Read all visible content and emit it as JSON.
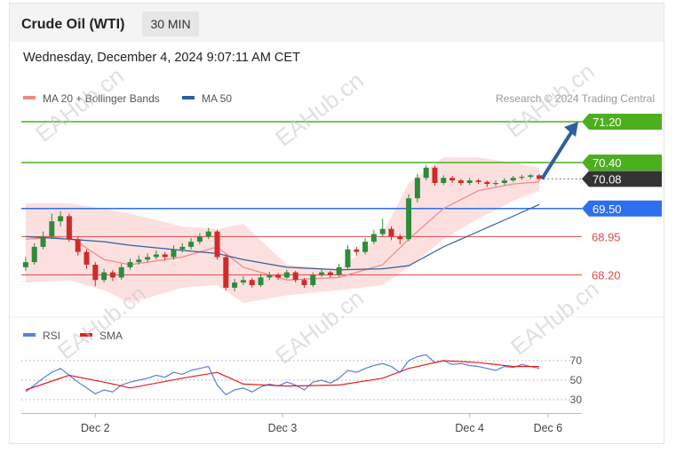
{
  "header": {
    "title": "Crude Oil (WTI)",
    "interval": "30 MIN",
    "timestamp": "Wednesday, December 4, 2024 9:07:11 AM CET",
    "credit": "Research © 2024 Trading Central"
  },
  "chart_data": {
    "type": "candlestick",
    "watermark": "EAHub.cn",
    "xlim": [
      -0.5,
      63
    ],
    "xticks": [
      {
        "value": 8,
        "label": "Dec 2"
      },
      {
        "value": 29.5,
        "label": "Dec 3"
      },
      {
        "value": 51,
        "label": "Dec 4"
      },
      {
        "value": 60,
        "label": "Dec 6"
      }
    ],
    "ylim": [
      67.4,
      71.4
    ],
    "up_color": "#2e8b3a",
    "down_color": "#d02a2a",
    "candles": [
      [
        68.35,
        68.55,
        68.28,
        68.45
      ],
      [
        68.45,
        68.82,
        68.4,
        68.75
      ],
      [
        68.75,
        69.05,
        68.7,
        68.95
      ],
      [
        68.95,
        69.4,
        68.9,
        69.25
      ],
      [
        69.25,
        69.45,
        69.15,
        69.35
      ],
      [
        69.35,
        69.4,
        68.85,
        68.9
      ],
      [
        68.9,
        68.95,
        68.58,
        68.65
      ],
      [
        68.65,
        68.7,
        68.32,
        68.4
      ],
      [
        68.4,
        68.45,
        67.98,
        68.1
      ],
      [
        68.1,
        68.32,
        68.05,
        68.25
      ],
      [
        68.25,
        68.3,
        68.08,
        68.15
      ],
      [
        68.15,
        68.42,
        68.1,
        68.35
      ],
      [
        68.35,
        68.52,
        68.3,
        68.45
      ],
      [
        68.45,
        68.58,
        68.4,
        68.5
      ],
      [
        68.5,
        68.62,
        68.45,
        68.55
      ],
      [
        68.55,
        68.68,
        68.5,
        68.6
      ],
      [
        68.6,
        68.65,
        68.48,
        68.55
      ],
      [
        68.55,
        68.78,
        68.5,
        68.7
      ],
      [
        68.7,
        68.82,
        68.64,
        68.75
      ],
      [
        68.75,
        68.92,
        68.7,
        68.85
      ],
      [
        68.85,
        69.02,
        68.8,
        68.95
      ],
      [
        68.95,
        69.12,
        68.9,
        69.05
      ],
      [
        69.05,
        69.08,
        68.5,
        68.55
      ],
      [
        68.55,
        68.6,
        67.9,
        67.95
      ],
      [
        67.95,
        68.12,
        67.88,
        68.05
      ],
      [
        68.05,
        68.18,
        68.0,
        68.1
      ],
      [
        68.1,
        68.14,
        67.95,
        68.0
      ],
      [
        68.0,
        68.22,
        67.96,
        68.15
      ],
      [
        68.15,
        68.26,
        68.1,
        68.2
      ],
      [
        68.2,
        68.24,
        68.1,
        68.15
      ],
      [
        68.15,
        68.3,
        68.12,
        68.25
      ],
      [
        68.25,
        68.28,
        68.05,
        68.1
      ],
      [
        68.1,
        68.14,
        67.95,
        68.0
      ],
      [
        68.0,
        68.25,
        67.96,
        68.2
      ],
      [
        68.2,
        68.3,
        68.16,
        68.25
      ],
      [
        68.25,
        68.28,
        68.15,
        68.2
      ],
      [
        68.2,
        68.42,
        68.16,
        68.35
      ],
      [
        68.35,
        68.78,
        68.3,
        68.7
      ],
      [
        68.7,
        68.75,
        68.58,
        68.65
      ],
      [
        68.65,
        68.92,
        68.6,
        68.85
      ],
      [
        68.85,
        69.08,
        68.8,
        69.0
      ],
      [
        69.0,
        69.3,
        68.95,
        69.1
      ],
      [
        69.1,
        69.15,
        68.88,
        68.95
      ],
      [
        68.95,
        69.0,
        68.8,
        68.9
      ],
      [
        68.9,
        69.78,
        68.86,
        69.7
      ],
      [
        69.7,
        70.18,
        69.62,
        70.1
      ],
      [
        70.1,
        70.35,
        70.05,
        70.3
      ],
      [
        70.3,
        70.34,
        69.95,
        70.0
      ],
      [
        70.0,
        70.15,
        69.96,
        70.1
      ],
      [
        70.1,
        70.14,
        70.0,
        70.05
      ],
      [
        70.05,
        70.08,
        69.95,
        70.0
      ],
      [
        70.0,
        70.1,
        69.96,
        70.05
      ],
      [
        70.05,
        70.08,
        69.98,
        70.02
      ],
      [
        70.02,
        70.05,
        69.92,
        69.98
      ],
      [
        69.98,
        70.05,
        69.94,
        70.0
      ],
      [
        70.0,
        70.1,
        69.96,
        70.05
      ],
      [
        70.05,
        70.14,
        70.02,
        70.1
      ],
      [
        70.1,
        70.16,
        70.06,
        70.12
      ],
      [
        70.12,
        70.18,
        70.08,
        70.15
      ],
      [
        70.15,
        70.18,
        70.04,
        70.08
      ]
    ],
    "overlay_x": [
      0,
      5,
      9,
      12,
      18,
      22,
      25,
      30,
      36,
      41,
      44,
      48,
      52,
      56,
      59
    ],
    "series": [
      {
        "name": "MA 20 + Bollinger Bands",
        "color": "#f08888",
        "values": [
          68.9,
          68.95,
          68.5,
          68.4,
          68.55,
          68.75,
          68.35,
          68.1,
          68.15,
          68.4,
          68.9,
          69.5,
          69.85,
          69.98,
          70.02
        ]
      },
      {
        "name": "MA 50",
        "color": "#2f5f9e",
        "values": [
          68.95,
          68.9,
          68.85,
          68.78,
          68.68,
          68.62,
          68.5,
          68.35,
          68.3,
          68.32,
          68.38,
          68.75,
          69.05,
          69.35,
          69.58
        ]
      }
    ],
    "band": {
      "color": "#fbd6d6",
      "upper": [
        69.6,
        69.6,
        69.5,
        69.4,
        69.15,
        69.1,
        69.2,
        68.4,
        68.3,
        69.0,
        70.0,
        70.5,
        70.5,
        70.4,
        70.3
      ],
      "lower": [
        68.05,
        68.1,
        67.9,
        67.65,
        67.95,
        68.0,
        67.65,
        67.8,
        67.9,
        68.0,
        68.35,
        68.9,
        69.3,
        69.65,
        69.85
      ]
    },
    "levels": [
      {
        "value": 71.2,
        "label": "71.20",
        "color": "#4caf1e",
        "style": "box"
      },
      {
        "value": 70.4,
        "label": "70.40",
        "color": "#4caf1e",
        "style": "box"
      },
      {
        "value": 70.08,
        "label": "70.08",
        "color": "#333333",
        "style": "dotted"
      },
      {
        "value": 69.5,
        "label": "69.50",
        "color": "#2d6ff0",
        "style": "box"
      },
      {
        "value": 68.95,
        "label": "68.95",
        "color": "#e24a4a",
        "style": "text"
      },
      {
        "value": 68.2,
        "label": "68.20",
        "color": "#e24a4a",
        "style": "text"
      }
    ],
    "rsi": {
      "ylim": [
        21,
        83
      ],
      "yticks": [
        70,
        50,
        30
      ],
      "series": [
        {
          "name": "RSI",
          "color": "#5b7fe0",
          "values": [
            38,
            45,
            52,
            58,
            62,
            55,
            48,
            42,
            36,
            40,
            38,
            45,
            48,
            50,
            52,
            55,
            53,
            58,
            56,
            60,
            62,
            64,
            45,
            35,
            40,
            42,
            38,
            43,
            46,
            44,
            48,
            45,
            40,
            48,
            50,
            47,
            52,
            60,
            58,
            62,
            65,
            67,
            64,
            58,
            70,
            74,
            76,
            68,
            70,
            66,
            67,
            65,
            64,
            62,
            60,
            64,
            63,
            66,
            64,
            62
          ]
        },
        {
          "name": "SMA",
          "color": "#e02020",
          "values": [
            40,
            55,
            48,
            42,
            52,
            58,
            46,
            44,
            45,
            52,
            62,
            70,
            68,
            64,
            64
          ]
        }
      ]
    }
  }
}
